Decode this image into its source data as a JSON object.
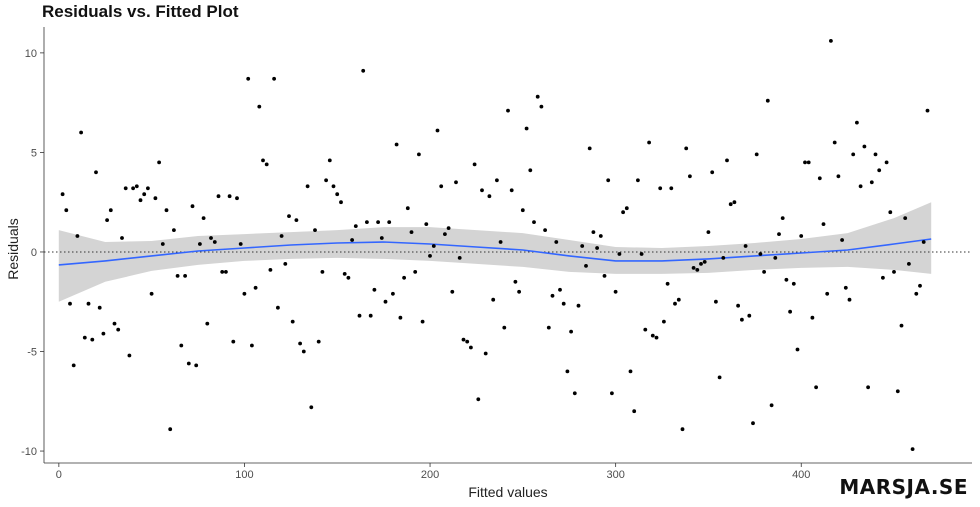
{
  "chart_data": {
    "type": "scatter",
    "title": "Residuals vs. Fitted Plot",
    "xlabel": "Fitted values",
    "ylabel": "Residuals",
    "xlim": [
      -8,
      492
    ],
    "ylim": [
      -10.6,
      11.3
    ],
    "x_ticks": [
      0,
      100,
      200,
      300,
      400
    ],
    "y_ticks": [
      -10,
      -5,
      0,
      5,
      10
    ],
    "grid": false,
    "reference_line": {
      "y": 0,
      "style": "dotted"
    },
    "smooth_line": {
      "color": "#3366FF",
      "x": [
        0,
        25,
        50,
        75,
        100,
        125,
        150,
        175,
        200,
        225,
        250,
        275,
        300,
        325,
        350,
        375,
        400,
        425,
        450,
        470
      ],
      "y": [
        -0.65,
        -0.45,
        -0.2,
        0.05,
        0.2,
        0.35,
        0.45,
        0.5,
        0.4,
        0.25,
        0.1,
        -0.2,
        -0.45,
        -0.45,
        -0.35,
        -0.2,
        -0.05,
        0.1,
        0.4,
        0.65
      ]
    },
    "confidence_band": {
      "color": "#d4d4d4",
      "x": [
        0,
        25,
        50,
        75,
        100,
        125,
        150,
        175,
        200,
        225,
        250,
        275,
        300,
        325,
        350,
        375,
        400,
        425,
        450,
        470
      ],
      "lower": [
        -2.5,
        -1.5,
        -0.95,
        -0.65,
        -0.45,
        -0.35,
        -0.3,
        -0.35,
        -0.45,
        -0.6,
        -0.75,
        -1.0,
        -1.1,
        -1.1,
        -1.05,
        -0.9,
        -0.8,
        -0.75,
        -0.9,
        -1.1
      ],
      "upper": [
        1.1,
        0.5,
        0.55,
        0.8,
        0.9,
        1.0,
        1.1,
        1.25,
        1.25,
        1.1,
        0.95,
        0.6,
        0.25,
        0.2,
        0.3,
        0.45,
        0.65,
        0.95,
        1.7,
        2.5
      ]
    },
    "points": [
      [
        2,
        2.9
      ],
      [
        4,
        2.1
      ],
      [
        6,
        -2.6
      ],
      [
        8,
        -5.7
      ],
      [
        10,
        0.8
      ],
      [
        12,
        6.0
      ],
      [
        14,
        -4.3
      ],
      [
        16,
        -2.6
      ],
      [
        18,
        -4.4
      ],
      [
        20,
        4.0
      ],
      [
        22,
        -2.8
      ],
      [
        24,
        -4.1
      ],
      [
        26,
        1.6
      ],
      [
        28,
        2.1
      ],
      [
        30,
        -3.6
      ],
      [
        32,
        -3.9
      ],
      [
        34,
        0.7
      ],
      [
        36,
        3.2
      ],
      [
        38,
        -5.2
      ],
      [
        40,
        3.2
      ],
      [
        42,
        3.3
      ],
      [
        44,
        2.6
      ],
      [
        46,
        2.9
      ],
      [
        48,
        3.2
      ],
      [
        50,
        -2.1
      ],
      [
        52,
        2.7
      ],
      [
        54,
        4.5
      ],
      [
        56,
        0.4
      ],
      [
        58,
        2.1
      ],
      [
        60,
        -8.9
      ],
      [
        62,
        1.1
      ],
      [
        64,
        -1.2
      ],
      [
        66,
        -4.7
      ],
      [
        68,
        -1.2
      ],
      [
        70,
        -5.6
      ],
      [
        72,
        2.3
      ],
      [
        74,
        -5.7
      ],
      [
        76,
        0.4
      ],
      [
        78,
        1.7
      ],
      [
        80,
        -3.6
      ],
      [
        82,
        0.7
      ],
      [
        84,
        0.5
      ],
      [
        86,
        2.8
      ],
      [
        88,
        -1.0
      ],
      [
        90,
        -1.0
      ],
      [
        92,
        2.8
      ],
      [
        94,
        -4.5
      ],
      [
        96,
        2.7
      ],
      [
        98,
        0.4
      ],
      [
        100,
        -2.1
      ],
      [
        102,
        8.7
      ],
      [
        104,
        -4.7
      ],
      [
        106,
        -1.8
      ],
      [
        108,
        7.3
      ],
      [
        110,
        4.6
      ],
      [
        112,
        4.4
      ],
      [
        114,
        -0.9
      ],
      [
        116,
        8.7
      ],
      [
        118,
        -2.8
      ],
      [
        120,
        0.8
      ],
      [
        122,
        -0.6
      ],
      [
        124,
        1.8
      ],
      [
        126,
        -3.5
      ],
      [
        128,
        1.6
      ],
      [
        130,
        -4.6
      ],
      [
        132,
        -5.0
      ],
      [
        134,
        3.3
      ],
      [
        136,
        -7.8
      ],
      [
        138,
        1.1
      ],
      [
        140,
        -4.5
      ],
      [
        142,
        -1.0
      ],
      [
        144,
        3.6
      ],
      [
        146,
        4.6
      ],
      [
        148,
        3.3
      ],
      [
        150,
        2.9
      ],
      [
        152,
        2.5
      ],
      [
        154,
        -1.1
      ],
      [
        156,
        -1.3
      ],
      [
        158,
        0.6
      ],
      [
        160,
        1.3
      ],
      [
        162,
        -3.2
      ],
      [
        164,
        9.1
      ],
      [
        166,
        1.5
      ],
      [
        168,
        -3.2
      ],
      [
        170,
        -1.9
      ],
      [
        172,
        1.5
      ],
      [
        174,
        0.7
      ],
      [
        176,
        -2.5
      ],
      [
        178,
        1.5
      ],
      [
        180,
        -2.1
      ],
      [
        182,
        5.4
      ],
      [
        184,
        -3.3
      ],
      [
        186,
        -1.3
      ],
      [
        188,
        2.2
      ],
      [
        190,
        1.0
      ],
      [
        192,
        -1.0
      ],
      [
        194,
        4.9
      ],
      [
        196,
        -3.5
      ],
      [
        198,
        1.4
      ],
      [
        200,
        -0.2
      ],
      [
        202,
        0.3
      ],
      [
        204,
        6.1
      ],
      [
        206,
        3.3
      ],
      [
        208,
        0.9
      ],
      [
        210,
        1.2
      ],
      [
        212,
        -2.0
      ],
      [
        214,
        3.5
      ],
      [
        216,
        -0.3
      ],
      [
        218,
        -4.4
      ],
      [
        220,
        -4.5
      ],
      [
        222,
        -4.8
      ],
      [
        224,
        4.4
      ],
      [
        226,
        -7.4
      ],
      [
        228,
        3.1
      ],
      [
        230,
        -5.1
      ],
      [
        232,
        2.8
      ],
      [
        234,
        -2.4
      ],
      [
        236,
        3.6
      ],
      [
        238,
        0.5
      ],
      [
        240,
        -3.8
      ],
      [
        242,
        7.1
      ],
      [
        244,
        3.1
      ],
      [
        246,
        -1.5
      ],
      [
        248,
        -2.0
      ],
      [
        250,
        2.1
      ],
      [
        252,
        6.2
      ],
      [
        254,
        4.1
      ],
      [
        256,
        1.5
      ],
      [
        258,
        7.8
      ],
      [
        260,
        7.3
      ],
      [
        262,
        1.1
      ],
      [
        264,
        -3.8
      ],
      [
        266,
        -2.2
      ],
      [
        268,
        0.5
      ],
      [
        270,
        -1.9
      ],
      [
        272,
        -2.6
      ],
      [
        274,
        -6.0
      ],
      [
        276,
        -4.0
      ],
      [
        278,
        -7.1
      ],
      [
        280,
        -2.7
      ],
      [
        282,
        0.3
      ],
      [
        284,
        -0.7
      ],
      [
        286,
        5.2
      ],
      [
        288,
        1.0
      ],
      [
        290,
        0.2
      ],
      [
        292,
        0.8
      ],
      [
        294,
        -1.2
      ],
      [
        296,
        3.6
      ],
      [
        298,
        -7.1
      ],
      [
        300,
        -2.0
      ],
      [
        302,
        -0.1
      ],
      [
        304,
        2.0
      ],
      [
        306,
        2.2
      ],
      [
        308,
        -6.0
      ],
      [
        310,
        -8.0
      ],
      [
        312,
        3.6
      ],
      [
        314,
        -0.1
      ],
      [
        316,
        -3.9
      ],
      [
        318,
        5.5
      ],
      [
        320,
        -4.2
      ],
      [
        322,
        -4.3
      ],
      [
        324,
        3.2
      ],
      [
        326,
        -3.5
      ],
      [
        328,
        -1.6
      ],
      [
        330,
        3.2
      ],
      [
        332,
        -2.6
      ],
      [
        334,
        -2.4
      ],
      [
        336,
        -8.9
      ],
      [
        338,
        5.2
      ],
      [
        340,
        3.8
      ],
      [
        342,
        -0.8
      ],
      [
        344,
        -0.9
      ],
      [
        346,
        -0.6
      ],
      [
        348,
        -0.5
      ],
      [
        350,
        1.0
      ],
      [
        352,
        4.0
      ],
      [
        354,
        -2.5
      ],
      [
        356,
        -6.3
      ],
      [
        358,
        -0.3
      ],
      [
        360,
        4.6
      ],
      [
        362,
        2.4
      ],
      [
        364,
        2.5
      ],
      [
        366,
        -2.7
      ],
      [
        368,
        -3.4
      ],
      [
        370,
        0.3
      ],
      [
        372,
        -3.2
      ],
      [
        374,
        -8.6
      ],
      [
        376,
        4.9
      ],
      [
        378,
        -0.1
      ],
      [
        380,
        -1.0
      ],
      [
        382,
        7.6
      ],
      [
        384,
        -7.7
      ],
      [
        386,
        -0.3
      ],
      [
        388,
        0.9
      ],
      [
        390,
        1.7
      ],
      [
        392,
        -1.4
      ],
      [
        394,
        -3.0
      ],
      [
        396,
        -1.6
      ],
      [
        398,
        -4.9
      ],
      [
        400,
        0.8
      ],
      [
        402,
        4.5
      ],
      [
        404,
        4.5
      ],
      [
        406,
        -3.3
      ],
      [
        408,
        -6.8
      ],
      [
        410,
        3.7
      ],
      [
        412,
        1.4
      ],
      [
        414,
        -2.1
      ],
      [
        416,
        10.6
      ],
      [
        418,
        5.5
      ],
      [
        420,
        3.8
      ],
      [
        422,
        0.6
      ],
      [
        424,
        -1.8
      ],
      [
        426,
        -2.4
      ],
      [
        428,
        4.9
      ],
      [
        430,
        6.5
      ],
      [
        432,
        3.3
      ],
      [
        434,
        5.3
      ],
      [
        436,
        -6.8
      ],
      [
        438,
        3.5
      ],
      [
        440,
        4.9
      ],
      [
        442,
        4.1
      ],
      [
        444,
        -1.3
      ],
      [
        446,
        4.5
      ],
      [
        448,
        2.0
      ],
      [
        450,
        -1.0
      ],
      [
        452,
        -7.0
      ],
      [
        454,
        -3.7
      ],
      [
        456,
        1.7
      ],
      [
        458,
        -0.6
      ],
      [
        460,
        -9.9
      ],
      [
        462,
        -2.1
      ],
      [
        464,
        -1.7
      ],
      [
        466,
        0.5
      ],
      [
        468,
        7.1
      ]
    ]
  },
  "watermark": "MARSJA.SE"
}
